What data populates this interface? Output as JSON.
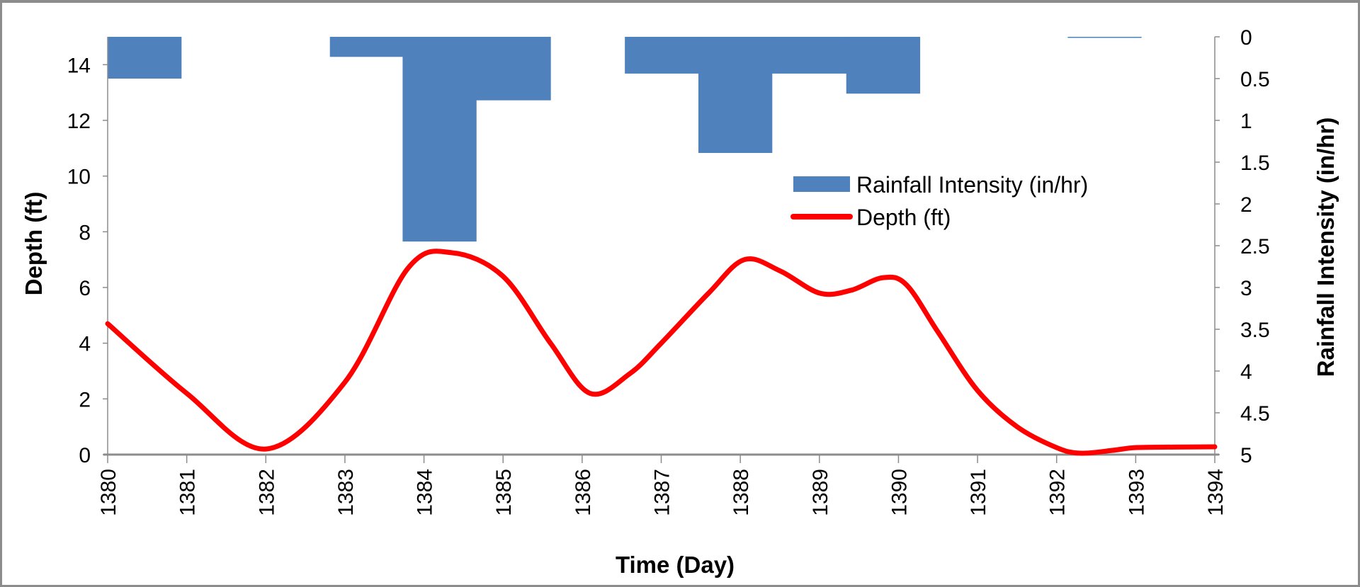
{
  "chart_data": {
    "type": "bar+line",
    "xlabel": "Time (Day)",
    "ylabel": "Depth (ft)",
    "y2label": "Rainfall Intensity (in/hr)",
    "xlim": [
      1380,
      1394
    ],
    "ylim": [
      0,
      15
    ],
    "y2lim": [
      5,
      0
    ],
    "y2_reversed": true,
    "x_ticks": [
      "1380",
      "1381",
      "1382",
      "1383",
      "1384",
      "1385",
      "1386",
      "1387",
      "1388",
      "1389",
      "1390",
      "1391",
      "1392",
      "1393",
      "1394"
    ],
    "y_ticks": [
      "0",
      "2",
      "4",
      "6",
      "8",
      "10",
      "12",
      "14"
    ],
    "y2_ticks": [
      "0",
      "0.5",
      "1",
      "1.5",
      "2",
      "2.5",
      "3",
      "3.5",
      "4",
      "4.5",
      "5"
    ],
    "grid": false,
    "legend_position": "center-right",
    "series": [
      {
        "name": "Rainfall Intensity (in/hr)",
        "type": "bar",
        "axis": "right",
        "color": "#4f81bd",
        "bars": [
          {
            "start": 1380.0,
            "end": 1380.93,
            "value": 0.5
          },
          {
            "start": 1382.81,
            "end": 1383.73,
            "value": 0.24
          },
          {
            "start": 1383.73,
            "end": 1384.66,
            "value": 2.45
          },
          {
            "start": 1384.66,
            "end": 1385.6,
            "value": 0.76
          },
          {
            "start": 1386.54,
            "end": 1387.47,
            "value": 0.44
          },
          {
            "start": 1387.47,
            "end": 1388.4,
            "value": 1.39
          },
          {
            "start": 1388.4,
            "end": 1389.34,
            "value": 0.44
          },
          {
            "start": 1389.34,
            "end": 1390.27,
            "value": 0.68
          },
          {
            "start": 1392.14,
            "end": 1393.07,
            "value": 0.01
          }
        ]
      },
      {
        "name": "Depth (ft)",
        "type": "line",
        "axis": "left",
        "color": "#ff0000",
        "x": [
          1380,
          1381,
          1382,
          1383,
          1383.8,
          1384.35,
          1385,
          1385.6,
          1386.1,
          1386.6,
          1387,
          1387.6,
          1388.05,
          1388.5,
          1389,
          1389.4,
          1389.8,
          1390.1,
          1390.5,
          1391,
          1391.5,
          1392,
          1392.3,
          1392.7,
          1393,
          1393.5,
          1394
        ],
        "y": [
          4.7,
          2.2,
          0.2,
          2.6,
          6.7,
          7.25,
          6.4,
          4.0,
          2.2,
          2.9,
          4.0,
          5.8,
          7.0,
          6.6,
          5.8,
          5.9,
          6.35,
          6.1,
          4.4,
          2.3,
          1.0,
          0.25,
          0.05,
          0.15,
          0.25,
          0.27,
          0.28
        ]
      }
    ]
  }
}
